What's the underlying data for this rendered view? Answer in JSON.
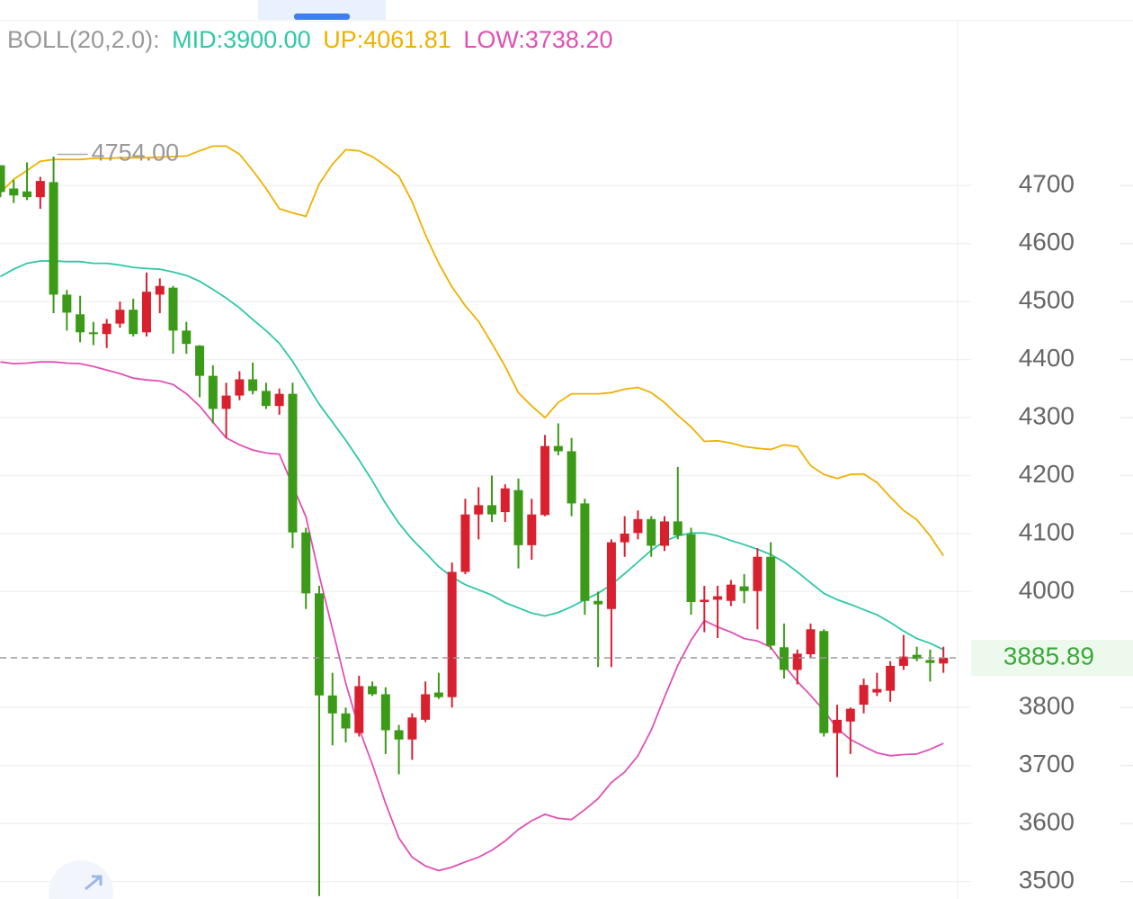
{
  "chart_data": {
    "type": "candlestick",
    "indicator": "BOLL(20,2.0):",
    "up_color": "#d9202f",
    "down_color": "#3b9a17",
    "open": [
      4735,
      4695,
      4690,
      4680,
      4706,
      4512,
      4478,
      4447,
      4444,
      4462,
      4486,
      4447,
      4512,
      4524,
      4450,
      4424,
      4372,
      4315,
      4338,
      4366,
      4346,
      4320,
      4341,
      4102,
      3997,
      3821,
      3790,
      3756,
      3837,
      3823,
      3761,
      3745,
      3779,
      3826,
      3818,
      4034,
      4133,
      4149,
      4137,
      4175,
      4080,
      4132,
      4251,
      4242,
      4152,
      3984,
      3970,
      4085,
      4101,
      4125,
      4079,
      4121,
      4099,
      3982,
      3986,
      3984,
      4009,
      4001,
      4060,
      3904,
      3865,
      3892,
      3932,
      3756,
      3776,
      3805,
      3826,
      3829,
      3872,
      3891,
      3882,
      3876
    ],
    "high": [
      4735,
      4710,
      4740,
      4715,
      4750,
      4520,
      4510,
      4465,
      4470,
      4500,
      4505,
      4550,
      4540,
      4527,
      4465,
      4425,
      4390,
      4360,
      4380,
      4395,
      4360,
      4350,
      4360,
      4110,
      4010,
      3860,
      3800,
      3855,
      3845,
      3835,
      3770,
      3790,
      3845,
      3860,
      4050,
      4160,
      4180,
      4200,
      4185,
      4195,
      4160,
      4270,
      4290,
      4265,
      4160,
      4000,
      4090,
      4130,
      4140,
      4130,
      4130,
      4215,
      4110,
      4010,
      4010,
      4020,
      4030,
      4075,
      4085,
      3945,
      3900,
      3945,
      3935,
      3805,
      3800,
      3850,
      3860,
      3880,
      3925,
      3905,
      3900,
      3905
    ],
    "low": [
      4680,
      4670,
      4675,
      4660,
      4480,
      4450,
      4430,
      4425,
      4420,
      4455,
      4440,
      4440,
      4480,
      4410,
      4410,
      4335,
      4290,
      4265,
      4330,
      4340,
      4315,
      4305,
      4075,
      3970,
      3475,
      3735,
      3740,
      3750,
      3820,
      3720,
      3685,
      3710,
      3775,
      3815,
      3800,
      4030,
      4090,
      4120,
      4120,
      4040,
      4055,
      4130,
      4235,
      4130,
      3960,
      3870,
      3870,
      4060,
      4090,
      4060,
      4070,
      4090,
      3960,
      3930,
      3920,
      3975,
      3980,
      3935,
      3900,
      3850,
      3840,
      3885,
      3750,
      3680,
      3720,
      3790,
      3820,
      3810,
      3865,
      3880,
      3845,
      3860
    ],
    "close": [
      4689,
      4683,
      4680,
      4708,
      4512,
      4481,
      4447,
      4444,
      4462,
      4486,
      4444,
      4517,
      4527,
      4450,
      4427,
      4372,
      4315,
      4338,
      4366,
      4346,
      4320,
      4341,
      4102,
      3997,
      3821,
      3790,
      3764,
      3837,
      3823,
      3761,
      3745,
      3783,
      3823,
      3818,
      4034,
      4133,
      4149,
      4133,
      4178,
      4080,
      4133,
      4251,
      4242,
      4152,
      3984,
      3978,
      4085,
      4100,
      4125,
      4079,
      4121,
      4097,
      3982,
      3986,
      3992,
      4012,
      4001,
      4060,
      3907,
      3865,
      3893,
      3935,
      3756,
      3779,
      3798,
      3839,
      3832,
      3872,
      3888,
      3884,
      3877,
      3886
    ],
    "series": [
      {
        "name": "MID:3900.00",
        "color": "#2dc8a6",
        "values": [
          4543,
          4556,
          4566,
          4570,
          4570,
          4569,
          4569,
          4566,
          4566,
          4563,
          4559,
          4557,
          4556,
          4551,
          4545,
          4535,
          4521,
          4506,
          4489,
          4469,
          4450,
          4428,
          4397,
          4360,
          4323,
          4292,
          4261,
          4227,
          4191,
          4152,
          4118,
          4090,
          4067,
          4043,
          4025,
          4012,
          4003,
          3994,
          3981,
          3972,
          3963,
          3958,
          3964,
          3974,
          3986,
          3997,
          4012,
          4031,
          4051,
          4071,
          4087,
          4096,
          4101,
          4101,
          4096,
          4088,
          4081,
          4073,
          4064,
          4051,
          4034,
          4015,
          3997,
          3986,
          3978,
          3969,
          3960,
          3947,
          3932,
          3919,
          3911,
          3900
        ]
      },
      {
        "name": "UP:4061.81",
        "color": "#f0b000",
        "values": [
          4688,
          4711,
          4726,
          4742,
          4745,
          4745,
          4745,
          4747,
          4747,
          4748,
          4748,
          4748,
          4749,
          4750,
          4751,
          4760,
          4768,
          4768,
          4754,
          4726,
          4695,
          4660,
          4653,
          4647,
          4703,
          4737,
          4762,
          4760,
          4750,
          4734,
          4716,
          4672,
          4615,
          4566,
          4525,
          4493,
          4466,
          4428,
          4388,
          4343,
          4320,
          4300,
          4326,
          4341,
          4341,
          4341,
          4343,
          4349,
          4352,
          4343,
          4326,
          4304,
          4284,
          4259,
          4260,
          4256,
          4250,
          4247,
          4245,
          4253,
          4250,
          4217,
          4202,
          4195,
          4202,
          4203,
          4188,
          4163,
          4140,
          4124,
          4096,
          4061.81
        ]
      },
      {
        "name": "LOW:3738.20",
        "color": "#e14fb5",
        "values": [
          4396,
          4393,
          4394,
          4396,
          4396,
          4394,
          4393,
          4388,
          4382,
          4376,
          4368,
          4365,
          4363,
          4357,
          4341,
          4320,
          4292,
          4265,
          4253,
          4244,
          4239,
          4237,
          4183,
          4129,
          4028,
          3935,
          3842,
          3764,
          3702,
          3635,
          3575,
          3542,
          3527,
          3519,
          3525,
          3534,
          3542,
          3554,
          3570,
          3590,
          3605,
          3616,
          3609,
          3607,
          3624,
          3643,
          3671,
          3689,
          3717,
          3761,
          3818,
          3873,
          3916,
          3950,
          3939,
          3930,
          3919,
          3915,
          3904,
          3873,
          3845,
          3821,
          3795,
          3764,
          3745,
          3733,
          3722,
          3717,
          3719,
          3720,
          3728,
          3738.2
        ]
      }
    ],
    "max_marker": {
      "value": 4754,
      "label": "4754.00"
    },
    "last_price": 3885.89,
    "last_price_color": "#3aa838",
    "ylim": [
      3470,
      5020
    ],
    "yticks": [
      3500,
      3600,
      3700,
      3800,
      4000,
      4100,
      4200,
      4300,
      4400,
      4500,
      4600,
      4700
    ],
    "grid": true
  }
}
